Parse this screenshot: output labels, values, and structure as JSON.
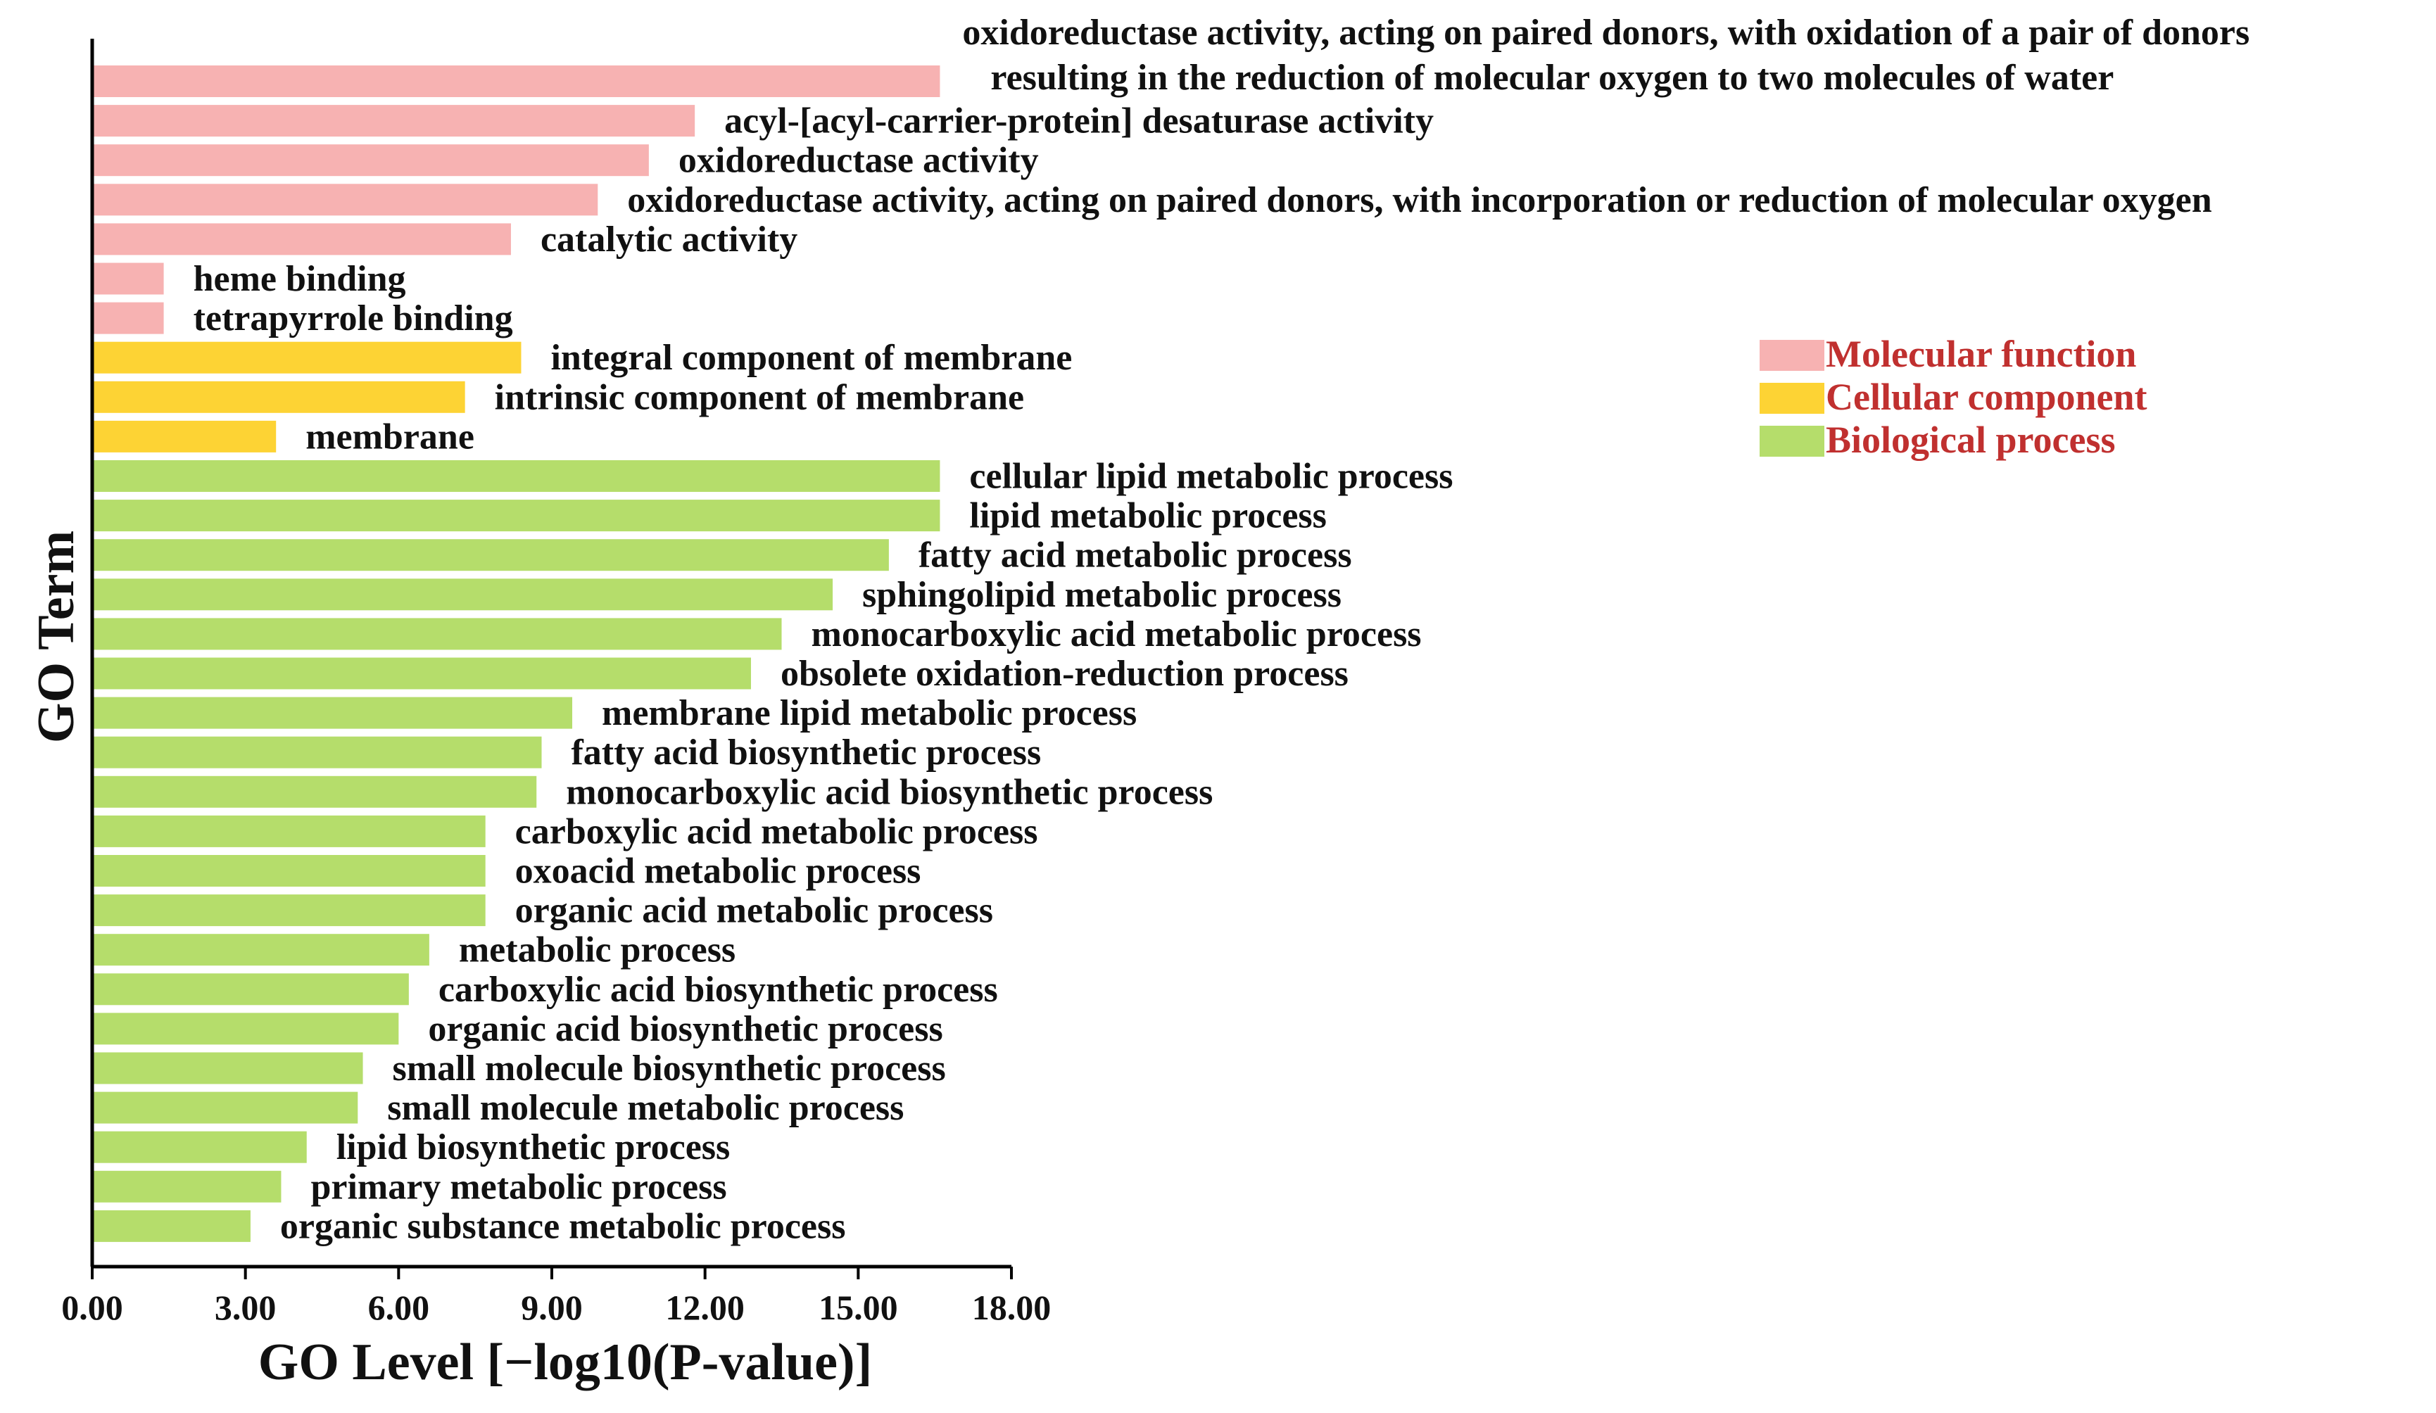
{
  "chart_data": {
    "type": "bar",
    "orientation": "horizontal",
    "xlabel": "GO Level [−log10(P-value)]",
    "ylabel": "GO Term",
    "xlim": [
      0,
      18
    ],
    "xticks": [
      "0.00",
      "3.00",
      "6.00",
      "9.00",
      "12.00",
      "15.00",
      "18.00"
    ],
    "legend_position": "right",
    "categories_legend": [
      {
        "name": "Molecular function",
        "color": "#f7b2b2"
      },
      {
        "name": "Cellular component",
        "color": "#fdd334"
      },
      {
        "name": "Biological process",
        "color": "#b5dd6b"
      }
    ],
    "bars": [
      {
        "label": "oxidoreductase activity, acting on paired donors, with oxidation of a pair of donors",
        "label_line2": "resulting in the reduction of molecular oxygen to two molecules of water",
        "value": 16.6,
        "category": "Molecular function"
      },
      {
        "label": "acyl-[acyl-carrier-protein] desaturase activity",
        "value": 11.8,
        "category": "Molecular function"
      },
      {
        "label": "oxidoreductase activity",
        "value": 10.9,
        "category": "Molecular function"
      },
      {
        "label": "oxidoreductase activity, acting on paired donors, with incorporation or reduction of molecular oxygen",
        "value": 9.9,
        "category": "Molecular function"
      },
      {
        "label": "catalytic activity",
        "value": 8.2,
        "category": "Molecular function"
      },
      {
        "label": "heme binding",
        "value": 1.4,
        "category": "Molecular function"
      },
      {
        "label": "tetrapyrrole binding",
        "value": 1.4,
        "category": "Molecular function"
      },
      {
        "label": "integral component of membrane",
        "value": 8.4,
        "category": "Cellular component"
      },
      {
        "label": "intrinsic component of membrane",
        "value": 7.3,
        "category": "Cellular component"
      },
      {
        "label": "membrane",
        "value": 3.6,
        "category": "Cellular component"
      },
      {
        "label": "cellular lipid metabolic process",
        "value": 16.6,
        "category": "Biological process"
      },
      {
        "label": "lipid metabolic process",
        "value": 16.6,
        "category": "Biological process"
      },
      {
        "label": "fatty acid metabolic process",
        "value": 15.6,
        "category": "Biological process"
      },
      {
        "label": "sphingolipid metabolic process",
        "value": 14.5,
        "category": "Biological process"
      },
      {
        "label": "monocarboxylic acid metabolic process",
        "value": 13.5,
        "category": "Biological process"
      },
      {
        "label": "obsolete oxidation-reduction process",
        "value": 12.9,
        "category": "Biological process"
      },
      {
        "label": "membrane lipid metabolic process",
        "value": 9.4,
        "category": "Biological process"
      },
      {
        "label": "fatty acid biosynthetic process",
        "value": 8.8,
        "category": "Biological process"
      },
      {
        "label": "monocarboxylic acid biosynthetic process",
        "value": 8.7,
        "category": "Biological process"
      },
      {
        "label": "carboxylic acid metabolic process",
        "value": 7.7,
        "category": "Biological process"
      },
      {
        "label": "oxoacid metabolic process",
        "value": 7.7,
        "category": "Biological process"
      },
      {
        "label": "organic acid metabolic process",
        "value": 7.7,
        "category": "Biological process"
      },
      {
        "label": "metabolic process",
        "value": 6.6,
        "category": "Biological process"
      },
      {
        "label": "carboxylic acid biosynthetic process",
        "value": 6.2,
        "category": "Biological process"
      },
      {
        "label": "organic acid biosynthetic process",
        "value": 6.0,
        "category": "Biological process"
      },
      {
        "label": "small molecule biosynthetic process",
        "value": 5.3,
        "category": "Biological process"
      },
      {
        "label": "small molecule metabolic process",
        "value": 5.2,
        "category": "Biological process"
      },
      {
        "label": "lipid biosynthetic process",
        "value": 4.2,
        "category": "Biological process"
      },
      {
        "label": "primary metabolic process",
        "value": 3.7,
        "category": "Biological process"
      },
      {
        "label": "organic substance metabolic process",
        "value": 3.1,
        "category": "Biological process"
      }
    ]
  }
}
